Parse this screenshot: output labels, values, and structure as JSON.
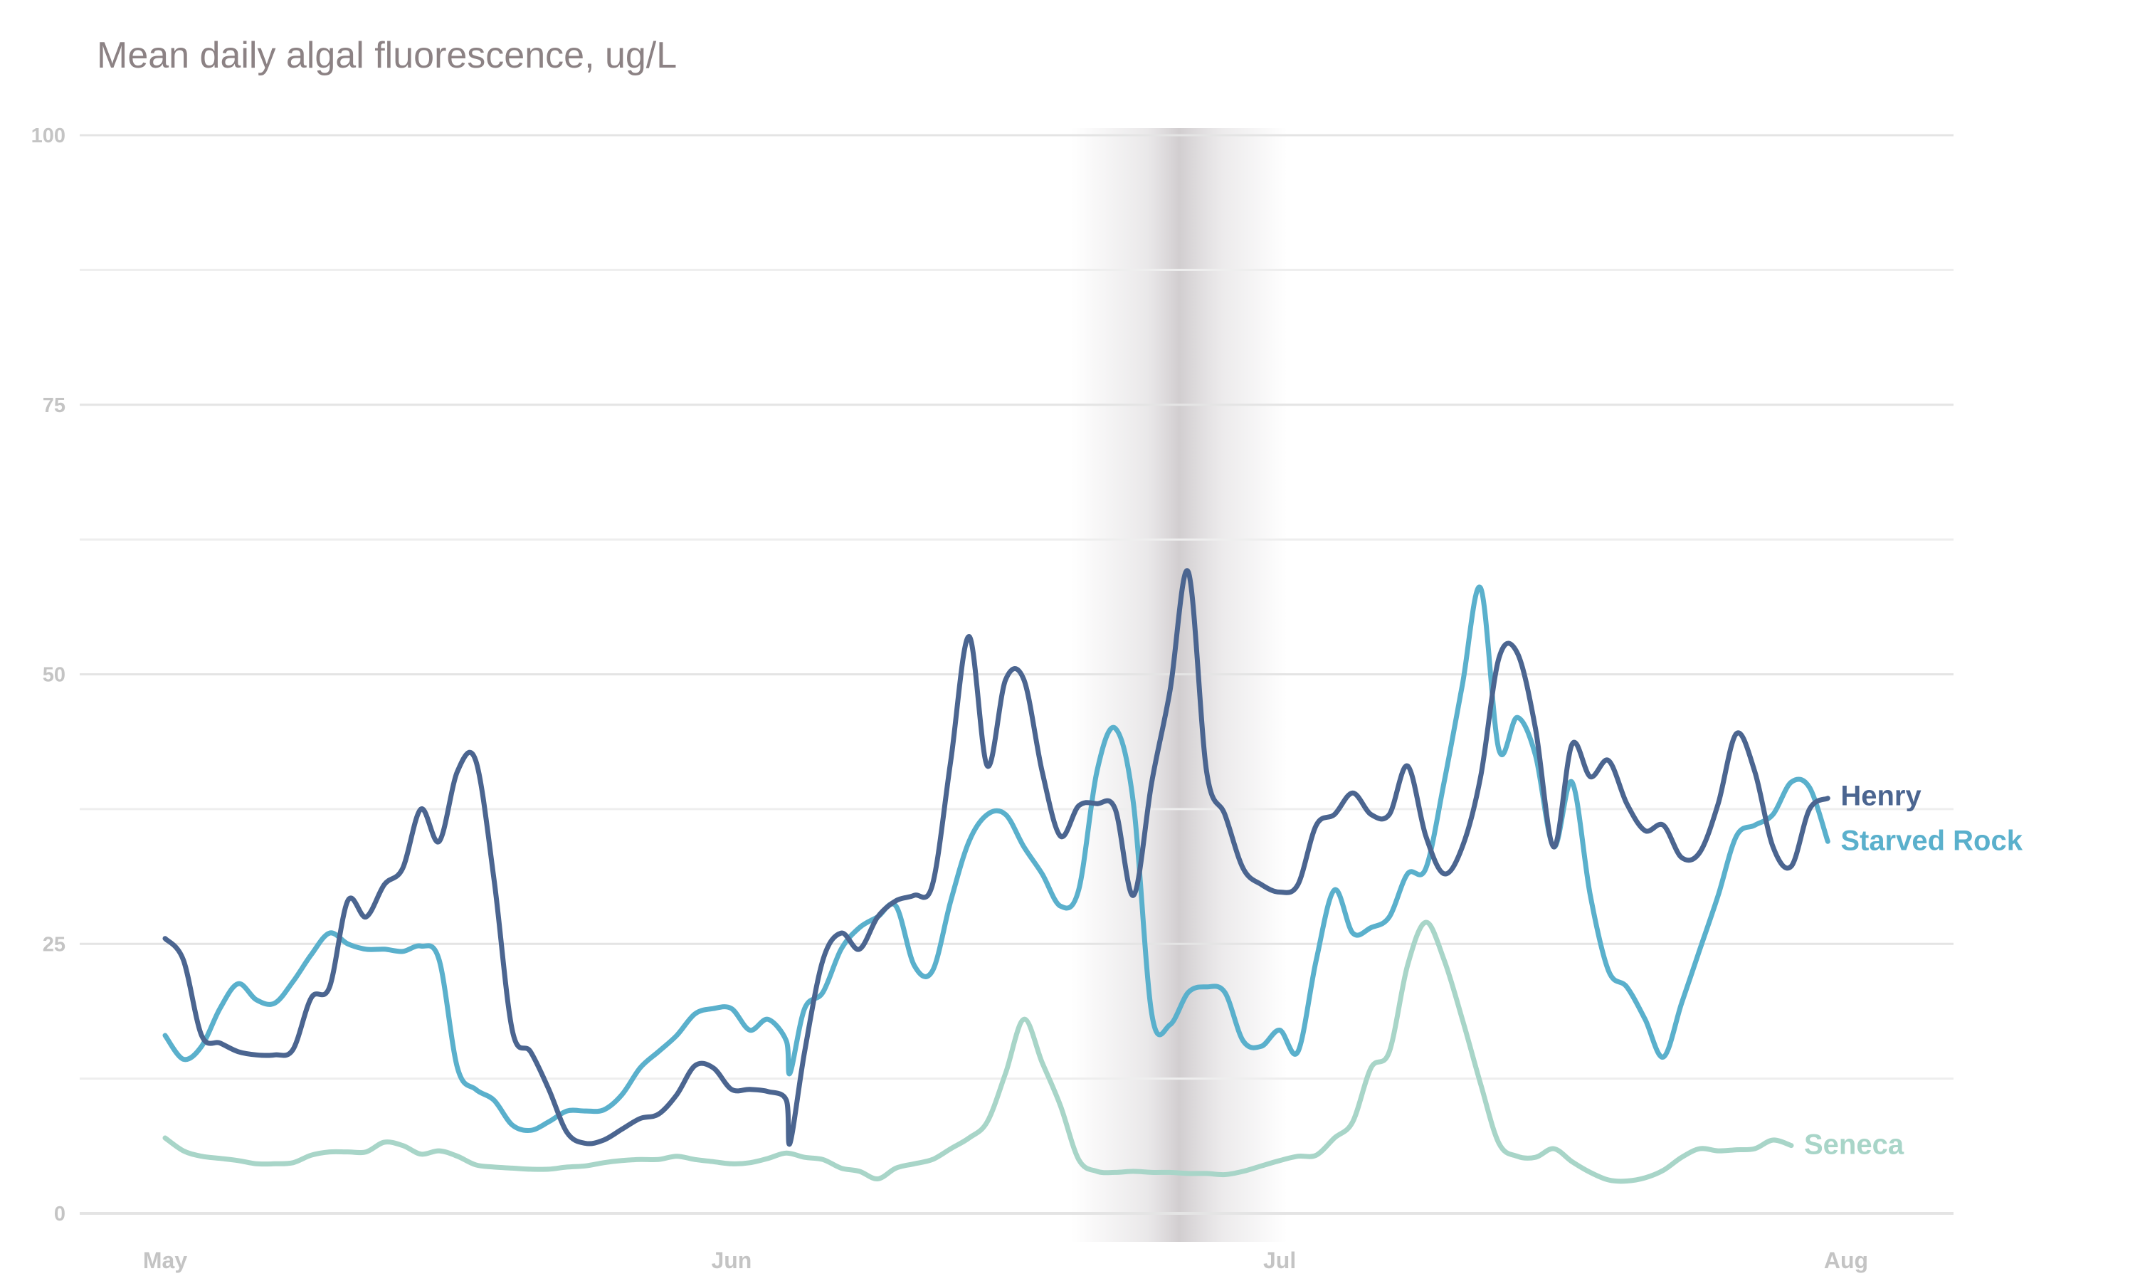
{
  "chart_data": {
    "type": "line",
    "title": "Mean daily algal fluorescence, ug/L",
    "xlabel": "",
    "ylabel": "",
    "ylim": [
      0,
      100
    ],
    "yticks": [
      "0",
      "25",
      "50",
      "75",
      "100"
    ],
    "xticks": [
      {
        "date": "2019-05-01",
        "label": "May"
      },
      {
        "date": "2019-06-01",
        "label": "Jun"
      },
      {
        "date": "2019-07-01",
        "label": "Jul"
      },
      {
        "date": "2019-08-01",
        "label": "Aug"
      }
    ],
    "grid": true,
    "legend": "direct labels at right end of lines",
    "shaded_band": {
      "from": "2019-06-20",
      "to": "2019-07-01",
      "peak": "2019-06-26"
    },
    "series": [
      {
        "name": "Henry",
        "color": "#4b6590",
        "points": [
          [
            "2019-05-01",
            25.5
          ],
          [
            "2019-05-02",
            23.5
          ],
          [
            "2019-05-03",
            16.5
          ],
          [
            "2019-05-04",
            15.8
          ],
          [
            "2019-05-05",
            15.0
          ],
          [
            "2019-05-06",
            14.7
          ],
          [
            "2019-05-07",
            14.7
          ],
          [
            "2019-05-08",
            15.2
          ],
          [
            "2019-05-09",
            20.0
          ],
          [
            "2019-05-10",
            21.0
          ],
          [
            "2019-05-11",
            29.0
          ],
          [
            "2019-05-12",
            27.5
          ],
          [
            "2019-05-13",
            30.5
          ],
          [
            "2019-05-14",
            32.0
          ],
          [
            "2019-05-15",
            37.5
          ],
          [
            "2019-05-16",
            34.5
          ],
          [
            "2019-05-17",
            41.0
          ],
          [
            "2019-05-18",
            42.0
          ],
          [
            "2019-05-19",
            31.0
          ],
          [
            "2019-05-20",
            17.0
          ],
          [
            "2019-05-21",
            15.0
          ],
          [
            "2019-05-22",
            11.5
          ],
          [
            "2019-05-23",
            7.5
          ],
          [
            "2019-05-24",
            6.5
          ],
          [
            "2019-05-25",
            6.8
          ],
          [
            "2019-05-26",
            7.8
          ],
          [
            "2019-05-27",
            8.8
          ],
          [
            "2019-05-28",
            9.2
          ],
          [
            "2019-05-29",
            11.0
          ],
          [
            "2019-05-30",
            13.7
          ],
          [
            "2019-05-31",
            13.5
          ],
          [
            "2019-06-01",
            11.5
          ],
          [
            "2019-06-02",
            11.5
          ],
          [
            "2019-06-03",
            11.3
          ],
          [
            "2019-06-04",
            10.5
          ],
          [
            "2019-06-04.2",
            6.5
          ],
          [
            "2019-06-05",
            15.0
          ],
          [
            "2019-06-06",
            23.5
          ],
          [
            "2019-06-07",
            26.0
          ],
          [
            "2019-06-08",
            24.5
          ],
          [
            "2019-06-09",
            27.5
          ],
          [
            "2019-06-10",
            29.0
          ],
          [
            "2019-06-11",
            29.5
          ],
          [
            "2019-06-12",
            30.5
          ],
          [
            "2019-06-13",
            42.0
          ],
          [
            "2019-06-14",
            53.5
          ],
          [
            "2019-06-15",
            41.5
          ],
          [
            "2019-06-16",
            49.5
          ],
          [
            "2019-06-17",
            49.5
          ],
          [
            "2019-06-18",
            41.0
          ],
          [
            "2019-06-19",
            35.0
          ],
          [
            "2019-06-20",
            37.8
          ],
          [
            "2019-06-21",
            38.0
          ],
          [
            "2019-06-22",
            37.5
          ],
          [
            "2019-06-23",
            29.5
          ],
          [
            "2019-06-24",
            40.0
          ],
          [
            "2019-06-25",
            48.5
          ],
          [
            "2019-06-26",
            59.5
          ],
          [
            "2019-06-27",
            41.0
          ],
          [
            "2019-06-28",
            37.0
          ],
          [
            "2019-06-29",
            32.0
          ],
          [
            "2019-06-30",
            30.5
          ],
          [
            "2019-07-01",
            29.8
          ],
          [
            "2019-07-02",
            30.5
          ],
          [
            "2019-07-03",
            36.0
          ],
          [
            "2019-07-04",
            37.0
          ],
          [
            "2019-07-05",
            39.0
          ],
          [
            "2019-07-06",
            37.0
          ],
          [
            "2019-07-07",
            37.0
          ],
          [
            "2019-07-08",
            41.5
          ],
          [
            "2019-07-09",
            35.0
          ],
          [
            "2019-07-10",
            31.5
          ],
          [
            "2019-07-11",
            34.0
          ],
          [
            "2019-07-12",
            40.5
          ],
          [
            "2019-07-13",
            51.5
          ],
          [
            "2019-07-14",
            52.0
          ],
          [
            "2019-07-15",
            45.0
          ],
          [
            "2019-07-16",
            34.0
          ],
          [
            "2019-07-17",
            43.5
          ],
          [
            "2019-07-18",
            40.5
          ],
          [
            "2019-07-19",
            42.0
          ],
          [
            "2019-07-20",
            38.0
          ],
          [
            "2019-07-21",
            35.5
          ],
          [
            "2019-07-22",
            36.0
          ],
          [
            "2019-07-23",
            33.0
          ],
          [
            "2019-07-24",
            33.5
          ],
          [
            "2019-07-25",
            38.0
          ],
          [
            "2019-07-26",
            44.5
          ],
          [
            "2019-07-27",
            41.0
          ],
          [
            "2019-07-28",
            34.0
          ],
          [
            "2019-07-29",
            32.2
          ],
          [
            "2019-07-30",
            37.5
          ],
          [
            "2019-07-31",
            38.5
          ]
        ]
      },
      {
        "name": "Starved Rock",
        "color": "#5ab0cc",
        "points": [
          [
            "2019-05-01",
            16.5
          ],
          [
            "2019-05-02",
            14.3
          ],
          [
            "2019-05-03",
            15.5
          ],
          [
            "2019-05-04",
            19.0
          ],
          [
            "2019-05-05",
            21.3
          ],
          [
            "2019-05-06",
            19.8
          ],
          [
            "2019-05-07",
            19.5
          ],
          [
            "2019-05-08",
            21.5
          ],
          [
            "2019-05-09",
            24.0
          ],
          [
            "2019-05-10",
            26.0
          ],
          [
            "2019-05-11",
            25.0
          ],
          [
            "2019-05-12",
            24.5
          ],
          [
            "2019-05-13",
            24.5
          ],
          [
            "2019-05-14",
            24.3
          ],
          [
            "2019-05-15",
            24.8
          ],
          [
            "2019-05-16",
            23.5
          ],
          [
            "2019-05-17",
            13.5
          ],
          [
            "2019-05-18",
            11.5
          ],
          [
            "2019-05-19",
            10.5
          ],
          [
            "2019-05-20",
            8.2
          ],
          [
            "2019-05-21",
            7.7
          ],
          [
            "2019-05-22",
            8.5
          ],
          [
            "2019-05-23",
            9.5
          ],
          [
            "2019-05-24",
            9.5
          ],
          [
            "2019-05-25",
            9.6
          ],
          [
            "2019-05-26",
            11.0
          ],
          [
            "2019-05-27",
            13.5
          ],
          [
            "2019-05-28",
            15.0
          ],
          [
            "2019-05-29",
            16.5
          ],
          [
            "2019-05-30",
            18.5
          ],
          [
            "2019-05-31",
            19.0
          ],
          [
            "2019-06-01",
            19.0
          ],
          [
            "2019-06-02",
            17.0
          ],
          [
            "2019-06-03",
            18.0
          ],
          [
            "2019-06-04",
            16.0
          ],
          [
            "2019-06-04.2",
            13.0
          ],
          [
            "2019-06-05",
            19.0
          ],
          [
            "2019-06-06",
            20.5
          ],
          [
            "2019-06-07",
            24.5
          ],
          [
            "2019-06-08",
            26.5
          ],
          [
            "2019-06-09",
            27.5
          ],
          [
            "2019-06-10",
            28.5
          ],
          [
            "2019-06-11",
            23.0
          ],
          [
            "2019-06-12",
            22.5
          ],
          [
            "2019-06-13",
            29.0
          ],
          [
            "2019-06-14",
            34.5
          ],
          [
            "2019-06-15",
            37.0
          ],
          [
            "2019-06-16",
            37.0
          ],
          [
            "2019-06-17",
            34.0
          ],
          [
            "2019-06-18",
            31.5
          ],
          [
            "2019-06-19",
            28.5
          ],
          [
            "2019-06-20",
            30.0
          ],
          [
            "2019-06-21",
            41.0
          ],
          [
            "2019-06-22",
            45.0
          ],
          [
            "2019-06-23",
            38.0
          ],
          [
            "2019-06-24",
            18.5
          ],
          [
            "2019-06-25",
            17.5
          ],
          [
            "2019-06-26",
            20.5
          ],
          [
            "2019-06-27",
            21.0
          ],
          [
            "2019-06-28",
            20.5
          ],
          [
            "2019-06-29",
            16.0
          ],
          [
            "2019-06-30",
            15.5
          ],
          [
            "2019-07-01",
            17.0
          ],
          [
            "2019-07-02",
            15.0
          ],
          [
            "2019-07-03",
            23.5
          ],
          [
            "2019-07-04",
            30.0
          ],
          [
            "2019-07-05",
            26.0
          ],
          [
            "2019-07-06",
            26.5
          ],
          [
            "2019-07-07",
            27.5
          ],
          [
            "2019-07-08",
            31.5
          ],
          [
            "2019-07-09",
            32.0
          ],
          [
            "2019-07-10",
            40.0
          ],
          [
            "2019-07-11",
            49.0
          ],
          [
            "2019-07-12",
            58.0
          ],
          [
            "2019-07-13",
            43.0
          ],
          [
            "2019-07-14",
            46.0
          ],
          [
            "2019-07-15",
            42.5
          ],
          [
            "2019-07-16",
            34.0
          ],
          [
            "2019-07-17",
            40.0
          ],
          [
            "2019-07-18",
            29.5
          ],
          [
            "2019-07-19",
            22.5
          ],
          [
            "2019-07-20",
            21.0
          ],
          [
            "2019-07-21",
            18.0
          ],
          [
            "2019-07-22",
            14.5
          ],
          [
            "2019-07-23",
            19.5
          ],
          [
            "2019-07-24",
            24.5
          ],
          [
            "2019-07-25",
            29.5
          ],
          [
            "2019-07-26",
            35.0
          ],
          [
            "2019-07-27",
            36.0
          ],
          [
            "2019-07-28",
            37.0
          ],
          [
            "2019-07-29",
            40.0
          ],
          [
            "2019-07-30",
            39.5
          ],
          [
            "2019-07-31",
            34.5
          ]
        ]
      },
      {
        "name": "Seneca",
        "color": "#a8d5c8",
        "points": [
          [
            "2019-05-01",
            7.0
          ],
          [
            "2019-05-02",
            5.8
          ],
          [
            "2019-05-03",
            5.3
          ],
          [
            "2019-05-04",
            5.1
          ],
          [
            "2019-05-05",
            4.9
          ],
          [
            "2019-05-06",
            4.6
          ],
          [
            "2019-05-07",
            4.6
          ],
          [
            "2019-05-08",
            4.7
          ],
          [
            "2019-05-09",
            5.4
          ],
          [
            "2019-05-10",
            5.7
          ],
          [
            "2019-05-11",
            5.7
          ],
          [
            "2019-05-12",
            5.7
          ],
          [
            "2019-05-13",
            6.6
          ],
          [
            "2019-05-14",
            6.3
          ],
          [
            "2019-05-15",
            5.5
          ],
          [
            "2019-05-16",
            5.8
          ],
          [
            "2019-05-17",
            5.3
          ],
          [
            "2019-05-18",
            4.5
          ],
          [
            "2019-05-19",
            4.3
          ],
          [
            "2019-05-20",
            4.2
          ],
          [
            "2019-05-21",
            4.1
          ],
          [
            "2019-05-22",
            4.1
          ],
          [
            "2019-05-23",
            4.3
          ],
          [
            "2019-05-24",
            4.4
          ],
          [
            "2019-05-25",
            4.7
          ],
          [
            "2019-05-26",
            4.9
          ],
          [
            "2019-05-27",
            5.0
          ],
          [
            "2019-05-28",
            5.0
          ],
          [
            "2019-05-29",
            5.3
          ],
          [
            "2019-05-30",
            5.0
          ],
          [
            "2019-05-31",
            4.8
          ],
          [
            "2019-06-01",
            4.6
          ],
          [
            "2019-06-02",
            4.7
          ],
          [
            "2019-06-03",
            5.1
          ],
          [
            "2019-06-04",
            5.6
          ],
          [
            "2019-06-05",
            5.2
          ],
          [
            "2019-06-06",
            5.0
          ],
          [
            "2019-06-07",
            4.2
          ],
          [
            "2019-06-08",
            3.9
          ],
          [
            "2019-06-09",
            3.2
          ],
          [
            "2019-06-10",
            4.2
          ],
          [
            "2019-06-11",
            4.6
          ],
          [
            "2019-06-12",
            5.0
          ],
          [
            "2019-06-13",
            6.0
          ],
          [
            "2019-06-14",
            7.0
          ],
          [
            "2019-06-15",
            8.5
          ],
          [
            "2019-06-16",
            13.0
          ],
          [
            "2019-06-17",
            18.0
          ],
          [
            "2019-06-18",
            14.0
          ],
          [
            "2019-06-19",
            10.0
          ],
          [
            "2019-06-20",
            5.0
          ],
          [
            "2019-06-21",
            3.9
          ],
          [
            "2019-06-22",
            3.8
          ],
          [
            "2019-06-23",
            3.9
          ],
          [
            "2019-06-24",
            3.8
          ],
          [
            "2019-06-25",
            3.8
          ],
          [
            "2019-06-26",
            3.7
          ],
          [
            "2019-06-27",
            3.7
          ],
          [
            "2019-06-28",
            3.6
          ],
          [
            "2019-06-29",
            3.9
          ],
          [
            "2019-06-30",
            4.4
          ],
          [
            "2019-07-01",
            4.9
          ],
          [
            "2019-07-02",
            5.3
          ],
          [
            "2019-07-03",
            5.4
          ],
          [
            "2019-07-04",
            7.0
          ],
          [
            "2019-07-05",
            8.5
          ],
          [
            "2019-07-06",
            13.5
          ],
          [
            "2019-07-07",
            15.0
          ],
          [
            "2019-07-08",
            23.0
          ],
          [
            "2019-07-09",
            27.0
          ],
          [
            "2019-07-10",
            23.5
          ],
          [
            "2019-07-11",
            18.0
          ],
          [
            "2019-07-12",
            12.0
          ],
          [
            "2019-07-13",
            6.5
          ],
          [
            "2019-07-14",
            5.3
          ],
          [
            "2019-07-15",
            5.2
          ],
          [
            "2019-07-16",
            6.0
          ],
          [
            "2019-07-17",
            4.8
          ],
          [
            "2019-07-18",
            3.8
          ],
          [
            "2019-07-19",
            3.1
          ],
          [
            "2019-07-20",
            3.0
          ],
          [
            "2019-07-21",
            3.3
          ],
          [
            "2019-07-22",
            4.0
          ],
          [
            "2019-07-23",
            5.2
          ],
          [
            "2019-07-24",
            6.0
          ],
          [
            "2019-07-25",
            5.8
          ],
          [
            "2019-07-26",
            5.9
          ],
          [
            "2019-07-27",
            6.0
          ],
          [
            "2019-07-28",
            6.8
          ],
          [
            "2019-07-29",
            6.3
          ]
        ]
      }
    ]
  }
}
